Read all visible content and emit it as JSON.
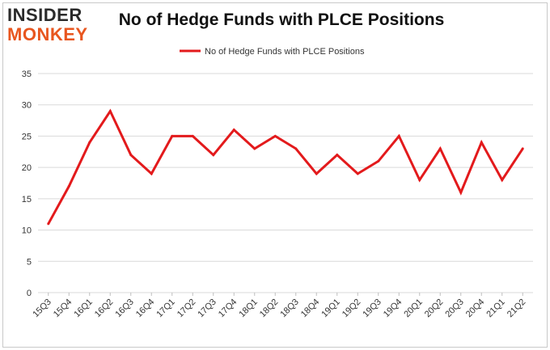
{
  "brand": {
    "line1": "INSIDER",
    "line2": "MONKEY"
  },
  "chart_data": {
    "type": "line",
    "title": "No of Hedge Funds with PLCE Positions",
    "xlabel": "",
    "ylabel": "",
    "ylim": [
      0,
      35
    ],
    "yticks": [
      0,
      5,
      10,
      15,
      20,
      25,
      30,
      35
    ],
    "grid": true,
    "legend_position": "top-center",
    "categories": [
      "15Q3",
      "15Q4",
      "16Q1",
      "16Q2",
      "16Q3",
      "16Q4",
      "17Q1",
      "17Q2",
      "17Q3",
      "17Q4",
      "18Q1",
      "18Q2",
      "18Q3",
      "18Q4",
      "19Q1",
      "19Q2",
      "19Q3",
      "19Q4",
      "20Q1",
      "20Q2",
      "20Q3",
      "20Q4",
      "21Q1",
      "21Q2"
    ],
    "series": [
      {
        "name": "No of Hedge Funds with PLCE Positions",
        "color": "#e31a1c",
        "values": [
          11,
          17,
          24,
          29,
          22,
          19,
          25,
          25,
          22,
          26,
          23,
          25,
          23,
          19,
          22,
          19,
          21,
          25,
          18,
          23,
          16,
          24,
          18,
          23
        ]
      }
    ]
  }
}
